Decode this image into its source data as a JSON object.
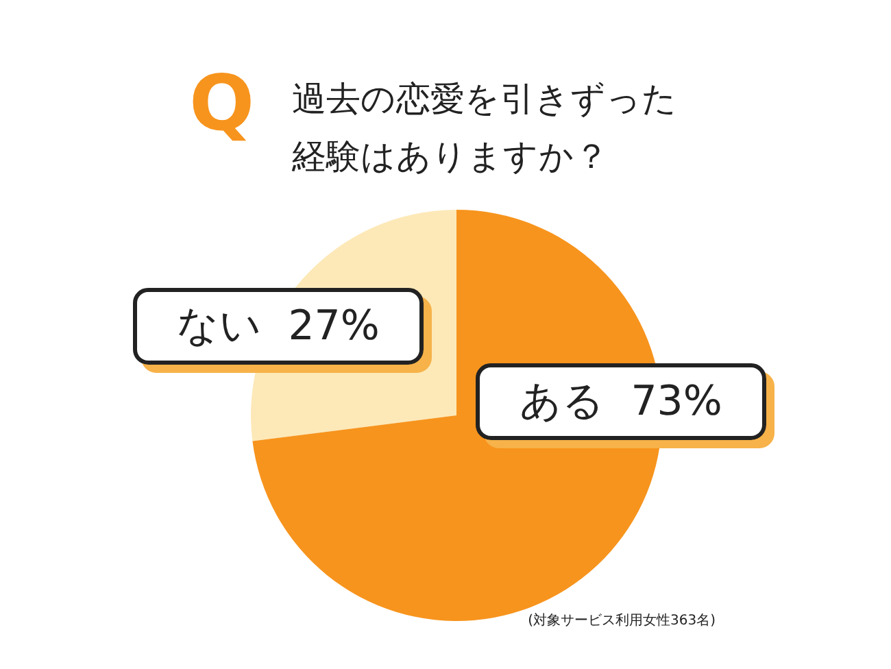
{
  "chart_data": {
    "type": "pie",
    "title": "過去の恋愛を引きずった経験はありますか？",
    "categories": [
      "ない",
      "ある"
    ],
    "values": [
      27,
      73
    ],
    "value_labels": [
      "27%",
      "73%"
    ],
    "colors": [
      "#fde9b8",
      "#f7941d"
    ],
    "legend": false,
    "annotations": [
      "Q",
      "(対象サービス利用女性363名)"
    ]
  }
}
